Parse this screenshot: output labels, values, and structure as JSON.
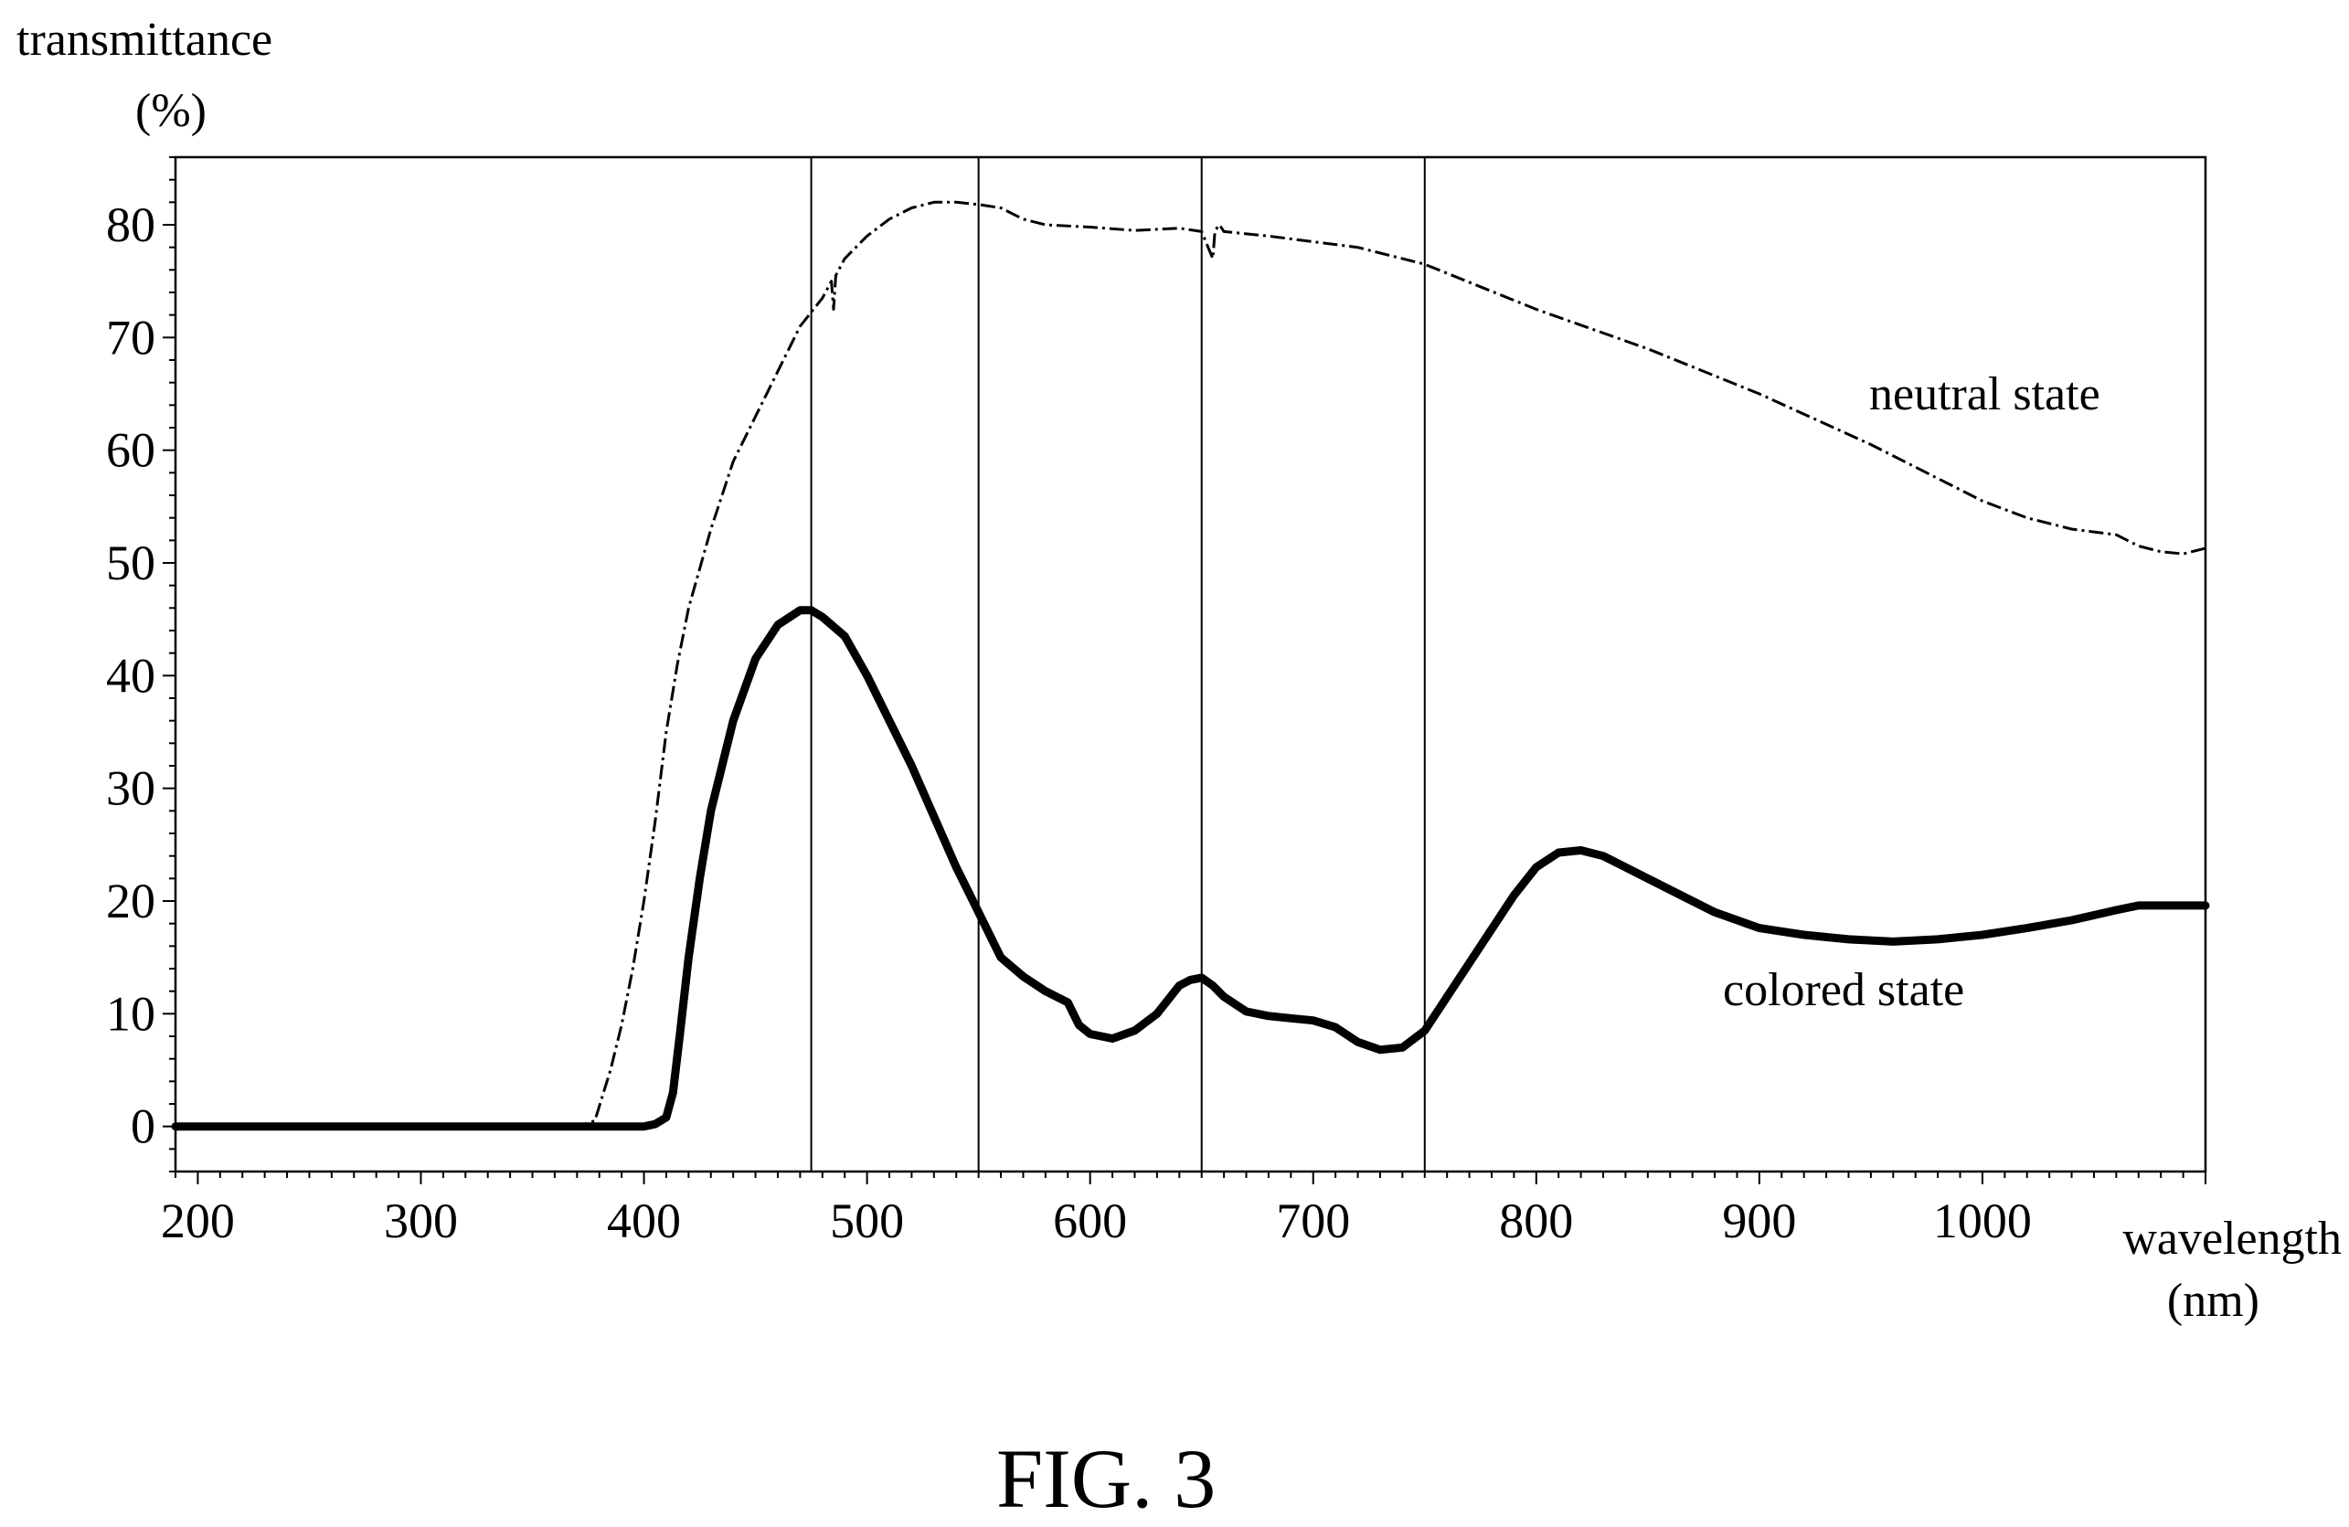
{
  "figure_label": "FIG. 3",
  "chart_data": {
    "type": "line",
    "ylabel": "transmittance",
    "ylabel_unit": "(%)",
    "xlabel": "wavelength",
    "xlabel_unit": "(nm)",
    "xlim": [
      190,
      1100
    ],
    "ylim": [
      -4,
      86
    ],
    "x_ticks": [
      200,
      300,
      400,
      500,
      600,
      700,
      800,
      900,
      1000
    ],
    "y_ticks": [
      0,
      10,
      20,
      30,
      40,
      50,
      60,
      70,
      80
    ],
    "vertical_lines": [
      475,
      550,
      650,
      750
    ],
    "grid": false,
    "series": [
      {
        "name": "neutral state",
        "style": "dash-dot",
        "x": [
          190,
          300,
          370,
          378,
          385,
          390,
          395,
          400,
          405,
          410,
          415,
          420,
          430,
          440,
          450,
          460,
          470,
          480,
          484,
          485,
          486,
          490,
          500,
          510,
          520,
          530,
          540,
          550,
          560,
          570,
          580,
          600,
          620,
          640,
          650,
          655,
          656,
          658,
          660,
          680,
          700,
          720,
          750,
          800,
          850,
          900,
          950,
          1000,
          1020,
          1040,
          1060,
          1070,
          1080,
          1090,
          1100
        ],
        "y": [
          0,
          0,
          0,
          0.5,
          5,
          9,
          14,
          20,
          27,
          35,
          41,
          46,
          53,
          59,
          63,
          67,
          71,
          73.5,
          75,
          72.5,
          75.5,
          77,
          79,
          80.5,
          81.5,
          82,
          82,
          81.8,
          81.5,
          80.5,
          80,
          79.8,
          79.5,
          79.7,
          79.4,
          77,
          79.5,
          80,
          79.4,
          79,
          78.5,
          78,
          76.5,
          72.5,
          69,
          65,
          60.5,
          55.5,
          54,
          53,
          52.5,
          51.5,
          51,
          50.8,
          51.3
        ]
      },
      {
        "name": "colored state",
        "style": "solid",
        "x": [
          190,
          300,
          400,
          405,
          410,
          413,
          416,
          420,
          425,
          430,
          440,
          450,
          460,
          470,
          475,
          480,
          490,
          500,
          520,
          540,
          550,
          560,
          570,
          580,
          590,
          595,
          600,
          610,
          620,
          630,
          640,
          645,
          650,
          655,
          660,
          670,
          680,
          690,
          700,
          710,
          720,
          730,
          740,
          750,
          760,
          770,
          780,
          790,
          800,
          810,
          820,
          830,
          840,
          860,
          880,
          900,
          920,
          940,
          960,
          980,
          1000,
          1020,
          1040,
          1060,
          1070,
          1080,
          1090,
          1100
        ],
        "y": [
          0,
          0,
          0,
          0.2,
          0.8,
          3,
          8,
          15,
          22,
          28,
          36,
          41.5,
          44.5,
          45.8,
          45.8,
          45.2,
          43.5,
          40,
          32,
          23,
          19,
          15,
          13.3,
          12,
          11,
          9,
          8.2,
          7.8,
          8.5,
          10,
          12.5,
          13,
          13.2,
          12.5,
          11.5,
          10.2,
          9.8,
          9.6,
          9.4,
          8.8,
          7.5,
          6.8,
          7,
          8.5,
          11.5,
          14.5,
          17.5,
          20.5,
          23,
          24.3,
          24.5,
          24,
          23,
          21,
          19,
          17.6,
          17,
          16.6,
          16.4,
          16.6,
          17,
          17.6,
          18.3,
          19.2,
          19.6,
          19.6,
          19.6,
          19.6
        ]
      }
    ]
  }
}
